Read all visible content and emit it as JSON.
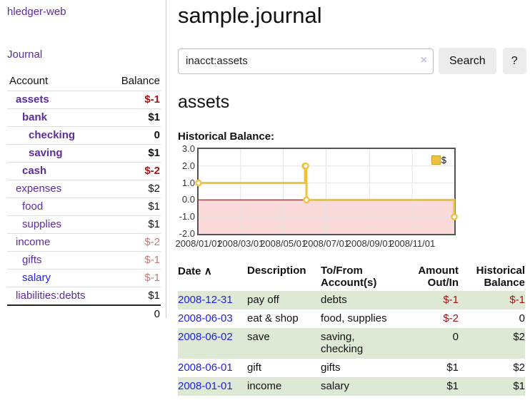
{
  "app": {
    "title": "hledger-web"
  },
  "sidebar": {
    "journal_link": "Journal",
    "table": {
      "headers": {
        "account": "Account",
        "balance": "Balance"
      },
      "rows": [
        {
          "account": "assets",
          "balance": "$-1",
          "level": 1,
          "bold": true,
          "balance_color": "dark",
          "link_color": "purple"
        },
        {
          "account": "bank",
          "balance": "$1",
          "level": 2,
          "bold": true,
          "balance_color": "black",
          "link_color": "purple"
        },
        {
          "account": "checking",
          "balance": "0",
          "level": 3,
          "bold": true,
          "balance_color": "black",
          "link_color": "purple"
        },
        {
          "account": "saving",
          "balance": "$1",
          "level": 3,
          "bold": true,
          "balance_color": "black",
          "link_color": "purple"
        },
        {
          "account": "cash",
          "balance": "$-2",
          "level": 2,
          "bold": true,
          "balance_color": "dark",
          "link_color": "purple"
        },
        {
          "account": "expenses",
          "balance": "$2",
          "level": 1,
          "bold": false,
          "balance_color": "black",
          "link_color": "purple"
        },
        {
          "account": "food",
          "balance": "$1",
          "level": 2,
          "bold": false,
          "balance_color": "black",
          "link_color": "purple"
        },
        {
          "account": "supplies",
          "balance": "$1",
          "level": 2,
          "bold": false,
          "balance_color": "black",
          "link_color": "purple"
        },
        {
          "account": "income",
          "balance": "$-2",
          "level": 1,
          "bold": false,
          "balance_color": "rose",
          "link_color": "purple"
        },
        {
          "account": "gifts",
          "balance": "$-1",
          "level": 2,
          "bold": false,
          "balance_color": "rose",
          "link_color": "purple"
        },
        {
          "account": "salary",
          "balance": "$-1",
          "level": 2,
          "bold": false,
          "balance_color": "rose",
          "link_color": "blue"
        },
        {
          "account": "liabilities:debts",
          "balance": "$1",
          "level": 1,
          "bold": false,
          "balance_color": "black",
          "link_color": "purple"
        }
      ],
      "total": "0"
    }
  },
  "main": {
    "title": "sample.journal",
    "search": {
      "value": "inacct:assets",
      "clear_icon": "×",
      "button": "Search",
      "help": "?"
    },
    "account_heading": "assets"
  },
  "chart_data": {
    "type": "line",
    "title": "Historical Balance:",
    "steps": true,
    "series": [
      {
        "name": "$",
        "color": "#EDC240",
        "points": [
          {
            "date": "2008-01-01",
            "value": 1
          },
          {
            "date": "2008-06-01",
            "value": 2
          },
          {
            "date": "2008-06-02",
            "value": 2
          },
          {
            "date": "2008-06-03",
            "value": 0
          },
          {
            "date": "2008-12-31",
            "value": -1
          }
        ]
      }
    ],
    "xrange": [
      "2008-01-01",
      "2008-12-31"
    ],
    "ylim": [
      -2,
      3
    ],
    "y_ticks": [
      "3.0",
      "2.0",
      "1.0",
      "0.0",
      "-1.0",
      "-2.0"
    ],
    "x_ticks": [
      "2008/01/01",
      "2008/03/01",
      "2008/05/01",
      "2008/07/01",
      "2008/09/01",
      "2008/11/01"
    ],
    "grid": true,
    "negative_region_color": "#fbdada",
    "zero_line_color": "#952a2a",
    "grid_color": "#e3e3e3",
    "legend": {
      "label": "$",
      "position": "top-right"
    }
  },
  "register": {
    "headers": {
      "date": "Date",
      "sort_icon": "∧",
      "description": "Description",
      "accounts": "To/From Account(s)",
      "amount": "Amount Out/In",
      "balance": "Historical Balance"
    },
    "rows": [
      {
        "date": "2008-12-31",
        "description": "pay off",
        "accounts": "debts",
        "amount": "$-1",
        "amount_neg": true,
        "balance": "$-1",
        "balance_neg": true,
        "striped": true
      },
      {
        "date": "2008-06-03",
        "description": "eat & shop",
        "accounts": "food, supplies",
        "amount": "$-2",
        "amount_neg": true,
        "balance": "0",
        "balance_neg": false,
        "striped": false
      },
      {
        "date": "2008-06-02",
        "description": "save",
        "accounts": "saving, checking",
        "amount": "0",
        "amount_neg": false,
        "balance": "$2",
        "balance_neg": false,
        "striped": true
      },
      {
        "date": "2008-06-01",
        "description": "gift",
        "accounts": "gifts",
        "amount": "$1",
        "amount_neg": false,
        "balance": "$2",
        "balance_neg": false,
        "striped": false
      },
      {
        "date": "2008-01-01",
        "description": "income",
        "accounts": "salary",
        "amount": "$1",
        "amount_neg": false,
        "balance": "$1",
        "balance_neg": false,
        "striped": true
      }
    ]
  }
}
